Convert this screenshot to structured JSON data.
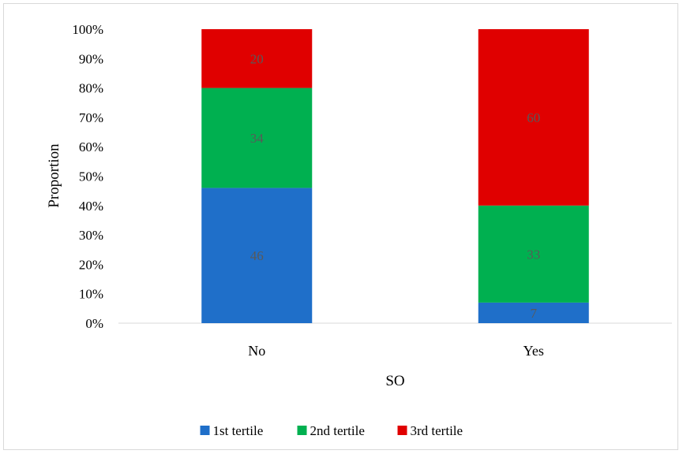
{
  "chart_data": {
    "type": "bar",
    "stacked": true,
    "title": "",
    "xlabel": "SO",
    "ylabel": "Proportion",
    "ylim": [
      0,
      100
    ],
    "y_ticks": [
      "0%",
      "10%",
      "20%",
      "30%",
      "40%",
      "50%",
      "60%",
      "70%",
      "80%",
      "90%",
      "100%"
    ],
    "categories": [
      "No",
      "Yes"
    ],
    "series": [
      {
        "name": "1st tertile",
        "values": [
          46,
          7
        ],
        "color": "#1f6fc9"
      },
      {
        "name": "2nd tertile",
        "values": [
          34,
          33
        ],
        "color": "#00b050"
      },
      {
        "name": "3rd tertile",
        "values": [
          20,
          60
        ],
        "color": "#e00000"
      }
    ],
    "data_label_color": "#595959",
    "grid": false,
    "legend_position": "bottom"
  }
}
